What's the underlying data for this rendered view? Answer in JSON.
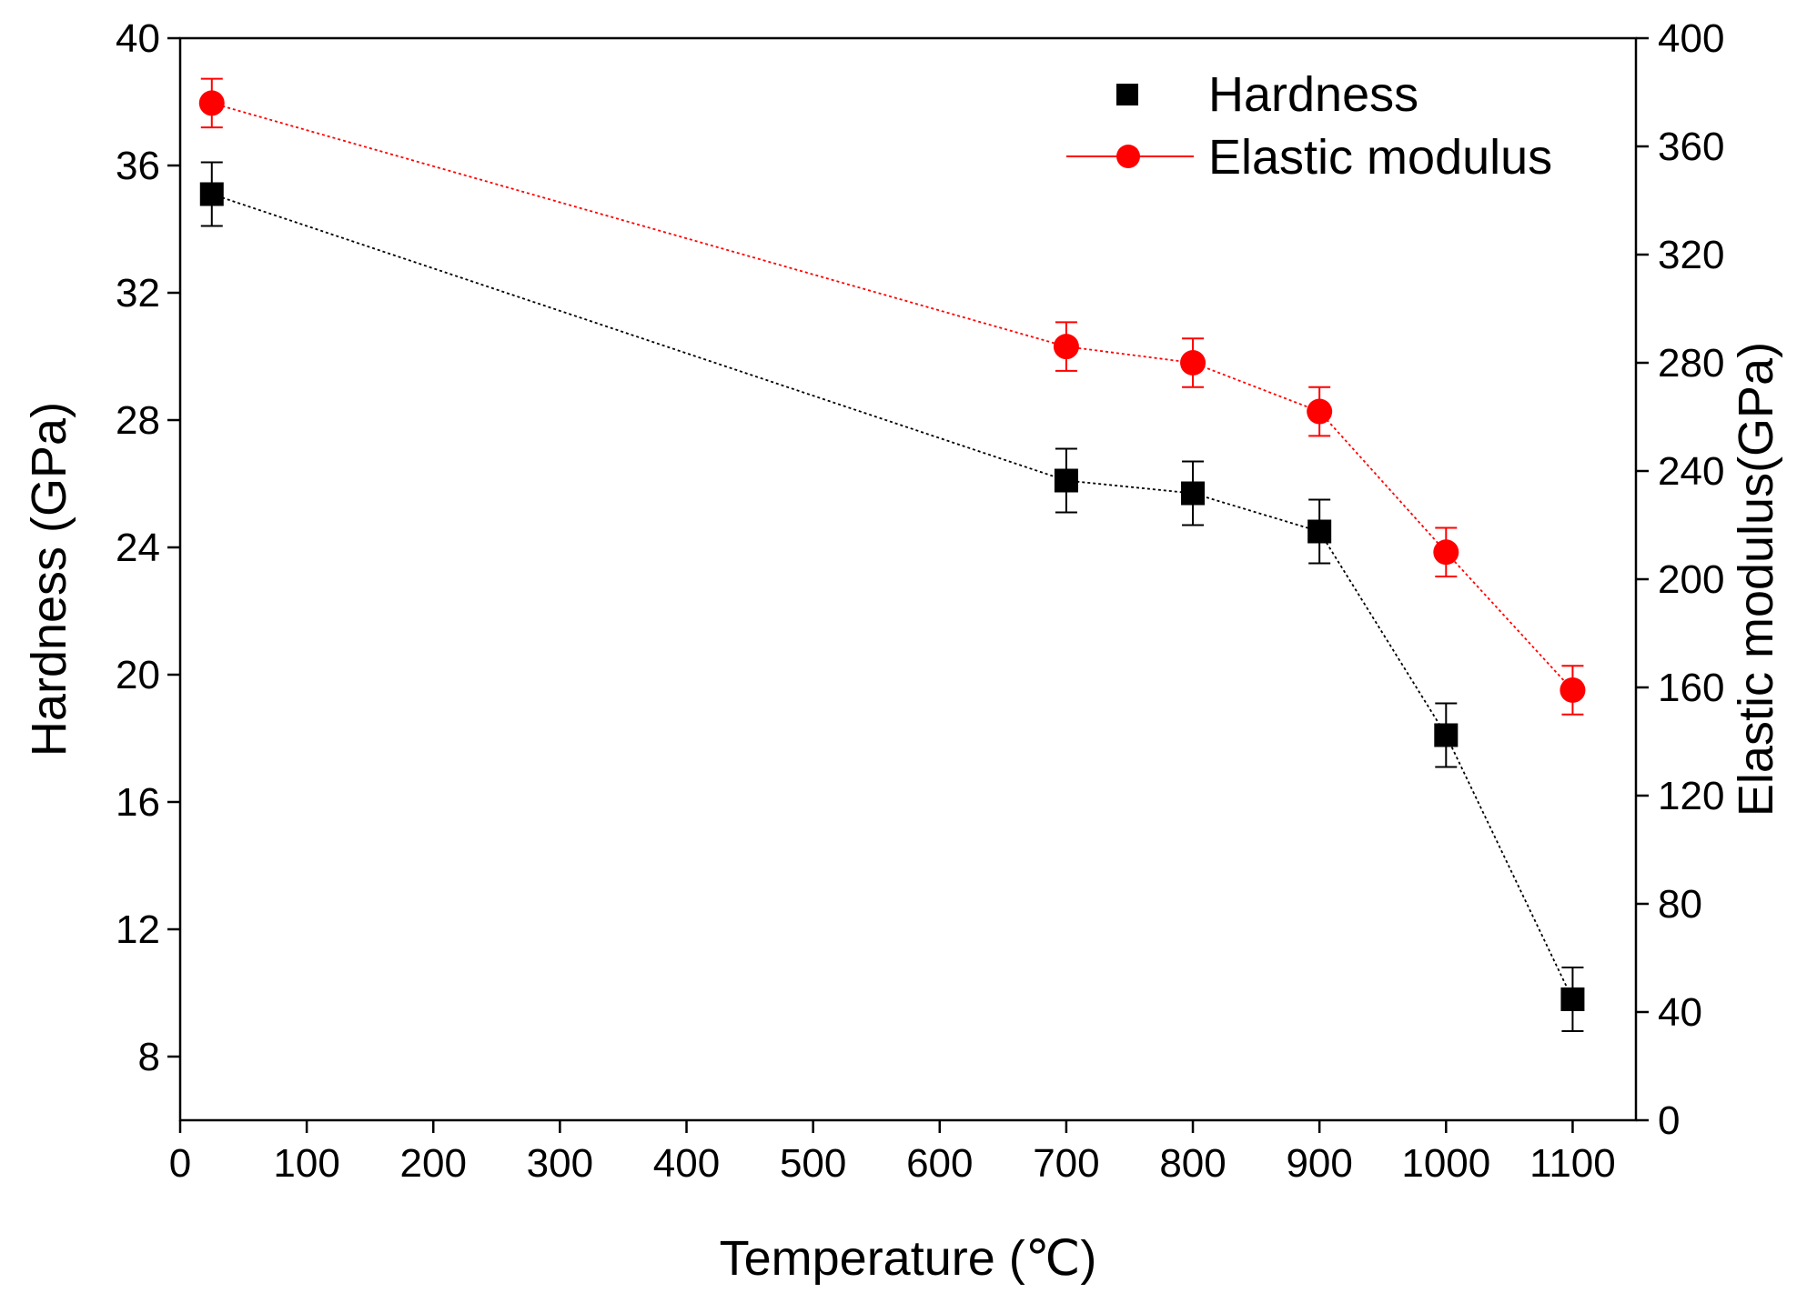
{
  "chart_data": {
    "type": "line",
    "title": "",
    "xlabel": "Temperature (℃)",
    "ylabel": "Hardness (GPa)",
    "ylabel_right": "Elastic modulus(GPa)",
    "xlim": [
      0,
      1150
    ],
    "ylim": [
      6,
      40
    ],
    "ylim_right": [
      0,
      400
    ],
    "x_ticks": [
      0,
      100,
      200,
      300,
      400,
      500,
      600,
      700,
      800,
      900,
      1000,
      1100
    ],
    "y_ticks": [
      8,
      12,
      16,
      20,
      24,
      28,
      32,
      36,
      40
    ],
    "y_right_ticks": [
      0,
      40,
      80,
      120,
      160,
      200,
      240,
      280,
      320,
      360,
      400
    ],
    "x": [
      25,
      700,
      800,
      900,
      1000,
      1100
    ],
    "legend_position": "top-right",
    "grid": false,
    "series": [
      {
        "name": "Hardness",
        "axis": "left",
        "color": "#000000",
        "marker": "square",
        "line_style": "dotted",
        "values": [
          35.1,
          26.1,
          25.7,
          24.5,
          18.1,
          9.8
        ],
        "errors": [
          1.0,
          1.0,
          1.0,
          1.0,
          1.0,
          1.0
        ]
      },
      {
        "name": "Elastic modulus",
        "axis": "right",
        "color": "#ff0000",
        "marker": "circle",
        "line_style": "dotted",
        "values": [
          376,
          286,
          280,
          262,
          210,
          159
        ],
        "errors": [
          9,
          9,
          9,
          9,
          9,
          9
        ]
      }
    ]
  }
}
